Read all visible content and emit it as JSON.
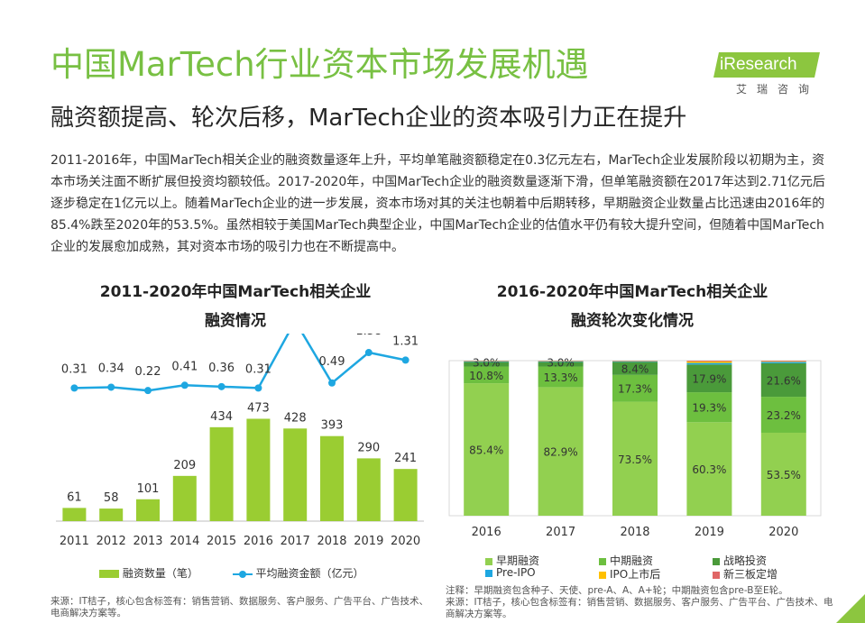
{
  "header": {
    "title": "中国MarTech行业资本市场发展机遇",
    "subtitle": "融资额提高、轮次后移，MarTech企业的资本吸引力正在提升",
    "logo_text": "iResearch",
    "logo_sub": "艾瑞咨询"
  },
  "body_text": "2011-2016年，中国MarTech相关企业的融资数量逐年上升，平均单笔融资额稳定在0.3亿元左右，MarTech企业发展阶段以初期为主，资本市场关注面不断扩展但投资均额较低。2017-2020年，中国MarTech企业的融资数量逐渐下滑，但单笔融资额在2017年达到2.71亿元后逐步稳定在1亿元以上。随着MarTech企业的进一步发展，资本市场对其的关注也朝着中后期转移，早期融资企业数量占比迅速由2016年的85.4%跌至2020年的53.5%。虽然相较于美国MarTech典型企业，中国MarTech企业的估值水平仍有较大提升空间，但随着中国MarTech企业的发展愈加成熟，其对资本市场的吸引力也在不断提高中。",
  "left_chart": {
    "title_line1": "2011-2020年中国MarTech相关企业",
    "title_line2": "融资情况",
    "legend_bar": "融资数量（笔）",
    "legend_line": "平均融资金额（亿元）",
    "source": "来源：IT桔子，核心包含标签有：销售营销、数据服务、客户服务、广告平台、广告技术、电商解决方案等。"
  },
  "right_chart": {
    "title_line1": "2016-2020年中国MarTech相关企业",
    "title_line2": "融资轮次变化情况",
    "legend": [
      "早期融资",
      "中期融资",
      "战略投资",
      "Pre-IPO",
      "IPO上市后",
      "新三板定增"
    ],
    "note": "注释：早期融资包含种子、天使、pre-A、A、A+轮；中期融资包含pre-B至E轮。",
    "source": "来源：IT桔子，核心包含标签有：销售营销、数据服务、客户服务、广告平台、广告技术、电商解决方案等。"
  },
  "colors": {
    "title_green": "#78c043",
    "bar_green": "#9acd32",
    "line_blue": "#1ea7e1",
    "early": "#92d050",
    "mid": "#6dbf3f",
    "strategic": "#4a9a3a",
    "preipo": "#1ea7e1",
    "ipo": "#ffc000",
    "neeq": "#e06666"
  },
  "chart_data": [
    {
      "type": "bar+line",
      "categories": [
        "2011",
        "2012",
        "2013",
        "2014",
        "2015",
        "2016",
        "2017",
        "2018",
        "2019",
        "2020"
      ],
      "series": [
        {
          "name": "融资数量（笔）",
          "type": "bar",
          "values": [
            61,
            58,
            101,
            209,
            434,
            473,
            428,
            393,
            290,
            241
          ]
        },
        {
          "name": "平均融资金额（亿元）",
          "type": "line",
          "values": [
            0.31,
            0.34,
            0.22,
            0.41,
            0.36,
            0.31,
            2.71,
            0.49,
            1.58,
            1.31
          ]
        }
      ],
      "title": "2011-2020年中国MarTech相关企业融资情况"
    },
    {
      "type": "bar",
      "stacked": true,
      "percent": true,
      "categories": [
        "2016",
        "2017",
        "2018",
        "2019",
        "2020"
      ],
      "series": [
        {
          "name": "早期融资",
          "values": [
            85.4,
            82.9,
            73.5,
            60.3,
            53.5
          ]
        },
        {
          "name": "中期融资",
          "values": [
            10.8,
            13.3,
            17.3,
            19.3,
            23.2
          ]
        },
        {
          "name": "战略投资",
          "values": [
            3.0,
            3.0,
            8.4,
            17.9,
            21.6
          ]
        },
        {
          "name": "Pre-IPO",
          "values": [
            0.4,
            0.4,
            0.4,
            1.0,
            0.9
          ]
        },
        {
          "name": "IPO上市后",
          "values": [
            0.2,
            0.2,
            0.2,
            1.0,
            0.4
          ]
        },
        {
          "name": "新三板定增",
          "values": [
            0.2,
            0.2,
            0.2,
            0.5,
            0.4
          ]
        }
      ],
      "data_labels": [
        [
          "85.4%",
          "10.8%",
          "3.0%"
        ],
        [
          "82.9%",
          "13.3%",
          "3.0%"
        ],
        [
          "73.5%",
          "17.3%",
          "8.4%"
        ],
        [
          "60.3%",
          "19.3%",
          "17.9%"
        ],
        [
          "53.5%",
          "23.2%",
          "21.6%"
        ]
      ],
      "ylim": [
        0,
        100
      ],
      "title": "2016-2020年中国MarTech相关企业融资轮次变化情况"
    }
  ]
}
